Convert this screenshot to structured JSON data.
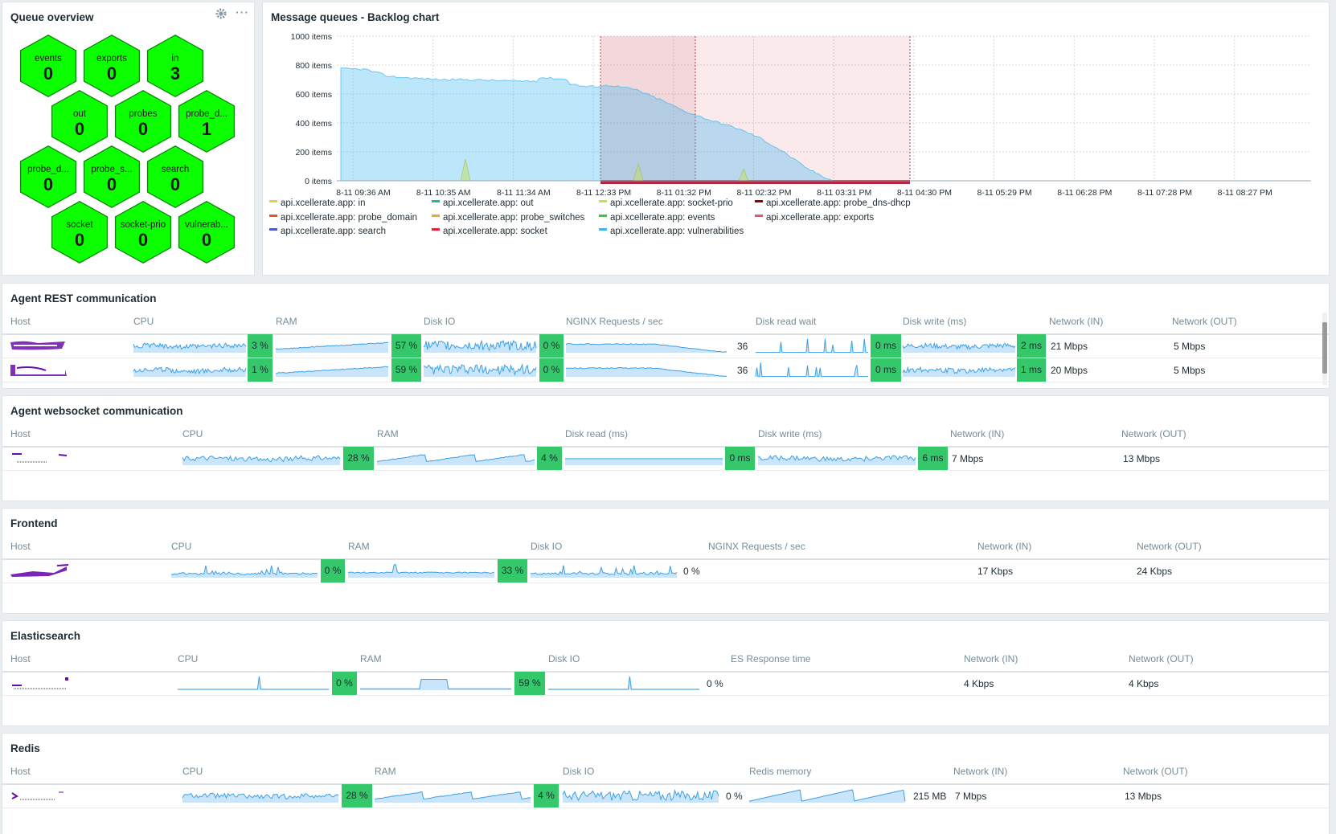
{
  "queue_overview": {
    "title": "Queue overview",
    "hexes": [
      {
        "name": "events",
        "value": "0"
      },
      {
        "name": "exports",
        "value": "0"
      },
      {
        "name": "in",
        "value": "3"
      },
      {
        "name": "out",
        "value": "0"
      },
      {
        "name": "probes",
        "value": "0"
      },
      {
        "name": "probe_d...",
        "value": "1"
      },
      {
        "name": "probe_d...",
        "value": "0"
      },
      {
        "name": "probe_s...",
        "value": "0"
      },
      {
        "name": "search",
        "value": "0"
      },
      {
        "name": "socket",
        "value": "0"
      },
      {
        "name": "socket-prio",
        "value": "0"
      },
      {
        "name": "vulnerab...",
        "value": "0"
      }
    ],
    "gear_icon": "gear-icon",
    "more_icon": "more-icon"
  },
  "backlog": {
    "title": "Message queues - Backlog chart"
  },
  "chart_data": {
    "type": "area",
    "title": "Message queues - Backlog chart",
    "ylabel": "items",
    "y_ticks": [
      "1000 items",
      "800 items",
      "600 items",
      "400 items",
      "200 items",
      "0 items"
    ],
    "ylim": [
      0,
      1000
    ],
    "x_ticks": [
      "8-11 09:36 AM",
      "8-11 10:35 AM",
      "8-11 11:34 AM",
      "8-11 12:33 PM",
      "8-11 01:32 PM",
      "8-11 02:32 PM",
      "8-11 03:31 PM",
      "8-11 04:30 PM",
      "8-11 05:29 PM",
      "8-11 06:28 PM",
      "8-11 07:28 PM",
      "8-11 08:27 PM"
    ],
    "series": [
      {
        "name": "api.xcellerate.app: in",
        "color": "#f2c94c"
      },
      {
        "name": "api.xcellerate.app: out",
        "color": "#1abc9c"
      },
      {
        "name": "api.xcellerate.app: socket-prio",
        "color": "#c5e14a"
      },
      {
        "name": "api.xcellerate.app: probe_dns-dhcp",
        "color": "#8b0000"
      },
      {
        "name": "api.xcellerate.app: probe_domain",
        "color": "#e0552a"
      },
      {
        "name": "api.xcellerate.app: probe_switches",
        "color": "#f0a830"
      },
      {
        "name": "api.xcellerate.app: events",
        "color": "#2ecc40"
      },
      {
        "name": "api.xcellerate.app: exports",
        "color": "#f0506e"
      },
      {
        "name": "api.xcellerate.app: search",
        "color": "#4a5bd0"
      },
      {
        "name": "api.xcellerate.app: socket",
        "color": "#e8203c"
      },
      {
        "name": "api.xcellerate.app: vulnerabilities",
        "color": "#3fb6f0",
        "values": [
          775,
          770,
          720,
          710,
          700,
          700,
          695,
          690,
          690,
          680,
          650,
          660,
          630,
          560,
          480,
          420,
          370,
          300,
          200,
          80,
          0,
          0,
          0,
          0,
          0,
          0
        ]
      }
    ]
  },
  "sections": {
    "agent_rest": {
      "title": "Agent REST communication",
      "headers": [
        "Host",
        "CPU",
        "RAM",
        "Disk IO",
        "NGINX Requests / sec",
        "Disk read wait",
        "Disk write (ms)",
        "Network (IN)",
        "Network (OUT)"
      ],
      "rows": [
        {
          "cpu": "3 %",
          "ram": "57 %",
          "disk": "0 %",
          "nginx": "36",
          "read_wait": "0 ms",
          "write": "2 ms",
          "net_in": "21 Mbps",
          "net_out": "5 Mbps"
        },
        {
          "cpu": "1 %",
          "ram": "59 %",
          "disk": "0 %",
          "nginx": "36",
          "read_wait": "0 ms",
          "write": "1 ms",
          "net_in": "20 Mbps",
          "net_out": "5 Mbps"
        }
      ]
    },
    "agent_ws": {
      "title": "Agent websocket communication",
      "headers": [
        "Host",
        "CPU",
        "RAM",
        "Disk read (ms)",
        "Disk write (ms)",
        "Network (IN)",
        "Network (OUT)"
      ],
      "rows": [
        {
          "cpu": "28 %",
          "ram": "4 %",
          "read": "0 ms",
          "write": "6 ms",
          "net_in": "7 Mbps",
          "net_out": "13 Mbps"
        }
      ]
    },
    "frontend": {
      "title": "Frontend",
      "headers": [
        "Host",
        "CPU",
        "RAM",
        "Disk IO",
        "NGINX Requests / sec",
        "Network (IN)",
        "Network (OUT)"
      ],
      "rows": [
        {
          "cpu": "0 %",
          "ram": "33 %",
          "disk": "0 %",
          "net_in": "17 Kbps",
          "net_out": "24 Kbps"
        }
      ]
    },
    "elastic": {
      "title": "Elasticsearch",
      "headers": [
        "Host",
        "CPU",
        "RAM",
        "Disk IO",
        "ES Response time",
        "Network (IN)",
        "Network (OUT)"
      ],
      "rows": [
        {
          "cpu": "0 %",
          "ram": "59 %",
          "disk": "0 %",
          "net_in": "4 Kbps",
          "net_out": "4 Kbps"
        }
      ]
    },
    "redis": {
      "title": "Redis",
      "headers": [
        "Host",
        "CPU",
        "RAM",
        "Disk IO",
        "Redis memory",
        "Network (IN)",
        "Network (OUT)"
      ],
      "rows": [
        {
          "cpu": "28 %",
          "ram": "4 %",
          "disk": "0 %",
          "memory": "215 MB",
          "net_in": "7 Mbps",
          "net_out": "13 Mbps"
        }
      ]
    }
  }
}
